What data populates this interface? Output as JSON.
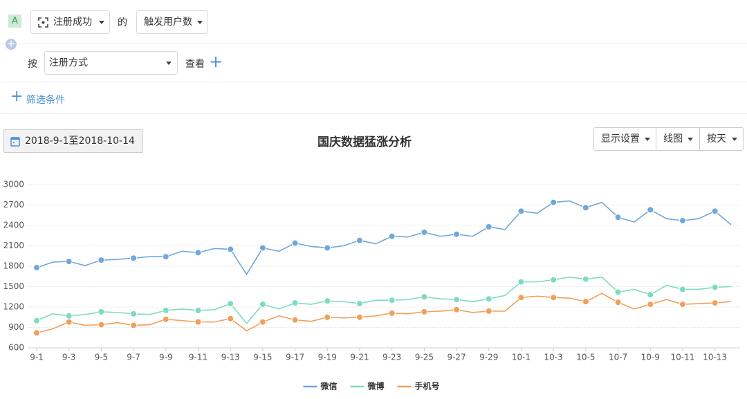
{
  "toolbar": {
    "badge": "A",
    "event": "注册成功",
    "of": "的",
    "measure": "触发用户数",
    "by": "按",
    "group": "注册方式",
    "view": "查看",
    "filter": "筛选条件",
    "date_range": "2018-9-1至2018-10-14",
    "display": "显示设置",
    "chart_type": "线图",
    "interval": "按天"
  },
  "chart_data": {
    "type": "line",
    "title": "国庆数据猛涨分析",
    "categories": [
      "9-1",
      null,
      "9-3",
      null,
      "9-5",
      null,
      "9-7",
      null,
      "9-9",
      null,
      "9-11",
      null,
      "9-13",
      null,
      "9-15",
      null,
      "9-17",
      null,
      "9-19",
      null,
      "9-21",
      null,
      "9-23",
      null,
      "9-25",
      null,
      "9-27",
      null,
      "9-29",
      null,
      "10-1",
      null,
      "10-3",
      null,
      "10-5",
      null,
      "10-7",
      null,
      "10-9",
      null,
      "10-11",
      null,
      "10-13",
      null
    ],
    "series": [
      {
        "name": "微信",
        "color": "#6fa8dc",
        "values": [
          1780,
          1860,
          1870,
          1810,
          1890,
          1900,
          1920,
          1940,
          1940,
          2020,
          2000,
          2060,
          2050,
          1680,
          2070,
          2020,
          2140,
          2090,
          2070,
          2100,
          2180,
          2130,
          2240,
          2230,
          2300,
          2240,
          2270,
          2240,
          2380,
          2340,
          2610,
          2580,
          2740,
          2760,
          2660,
          2740,
          2520,
          2450,
          2630,
          2500,
          2470,
          2500,
          2610,
          2410
        ]
      },
      {
        "name": "微博",
        "color": "#7ddcbf",
        "values": [
          1000,
          1100,
          1070,
          1090,
          1130,
          1120,
          1100,
          1090,
          1150,
          1170,
          1150,
          1160,
          1250,
          960,
          1240,
          1170,
          1260,
          1240,
          1290,
          1280,
          1250,
          1300,
          1300,
          1310,
          1350,
          1320,
          1310,
          1280,
          1320,
          1370,
          1570,
          1570,
          1600,
          1640,
          1610,
          1640,
          1420,
          1460,
          1380,
          1520,
          1460,
          1460,
          1490,
          1500
        ]
      },
      {
        "name": "手机号",
        "color": "#f0a05a",
        "values": [
          820,
          880,
          980,
          930,
          940,
          970,
          930,
          940,
          1020,
          1000,
          980,
          980,
          1030,
          850,
          980,
          1070,
          1010,
          990,
          1050,
          1040,
          1050,
          1070,
          1110,
          1100,
          1130,
          1140,
          1160,
          1120,
          1140,
          1140,
          1340,
          1360,
          1340,
          1330,
          1280,
          1400,
          1270,
          1170,
          1240,
          1310,
          1240,
          1250,
          1260,
          1280
        ]
      }
    ],
    "ylim": [
      600,
      3000
    ],
    "yticks": [
      600,
      900,
      1200,
      1500,
      1800,
      2100,
      2400,
      2700,
      3000
    ],
    "grid": true,
    "legend": "bottom"
  }
}
